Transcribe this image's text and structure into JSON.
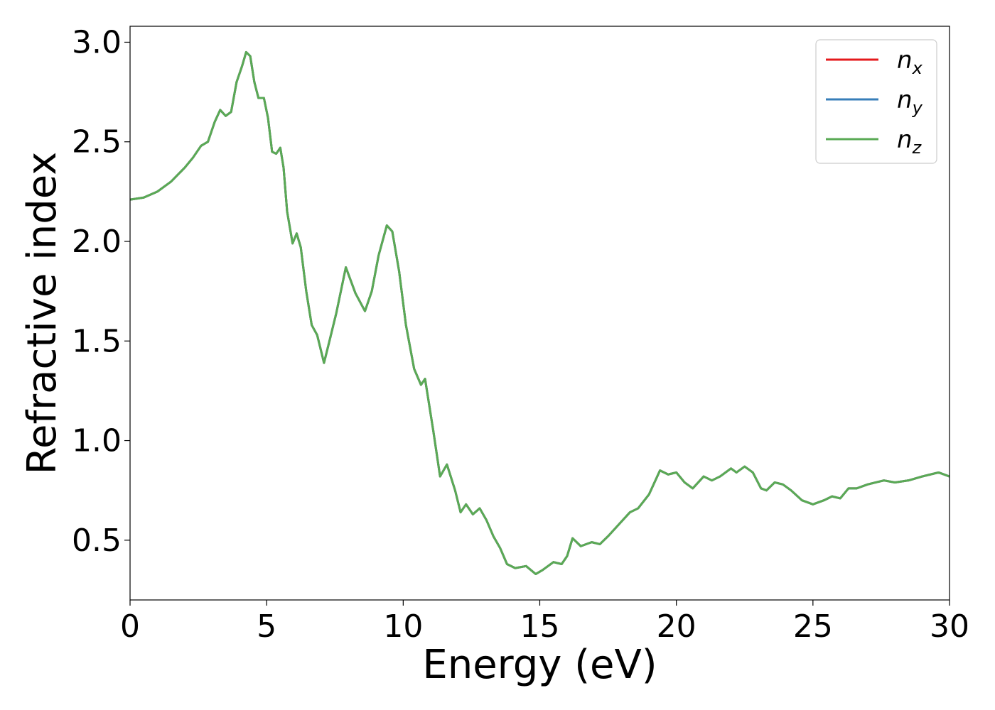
{
  "chart_data": {
    "type": "line",
    "xlabel": "Energy (eV)",
    "ylabel": "Refractive index",
    "xlim": [
      0,
      30
    ],
    "ylim": [
      0.2,
      3.08
    ],
    "xticks": [
      0,
      5,
      10,
      15,
      20,
      25,
      30
    ],
    "yticks": [
      0.5,
      1.0,
      1.5,
      2.0,
      2.5,
      3.0
    ],
    "xtick_labels": [
      "0",
      "5",
      "10",
      "15",
      "20",
      "25",
      "30"
    ],
    "ytick_labels": [
      "0.5",
      "1.0",
      "1.5",
      "2.0",
      "2.5",
      "3.0"
    ],
    "grid": false,
    "legend_position": "top-right",
    "series": [
      {
        "name": "n_x",
        "label_base": "n",
        "label_sub": "x",
        "color": "#e41a1c",
        "x": [
          0,
          0.5,
          1,
          1.5,
          2,
          2.3,
          2.6,
          2.85,
          3.1,
          3.3,
          3.5,
          3.7,
          3.9,
          4.1,
          4.25,
          4.4,
          4.55,
          4.7,
          4.9,
          5.05,
          5.2,
          5.35,
          5.5,
          5.62,
          5.75,
          5.95,
          6.1,
          6.25,
          6.45,
          6.65,
          6.85,
          7.1,
          7.3,
          7.55,
          7.9,
          8.25,
          8.6,
          8.85,
          9.1,
          9.4,
          9.6,
          9.85,
          10.1,
          10.4,
          10.65,
          10.8,
          11.1,
          11.35,
          11.6,
          11.9,
          12.1,
          12.3,
          12.55,
          12.8,
          13.05,
          13.3,
          13.55,
          13.8,
          14.1,
          14.5,
          14.85,
          15.1,
          15.5,
          15.8,
          16.0,
          16.2,
          16.5,
          16.9,
          17.2,
          17.5,
          17.9,
          18.3,
          18.6,
          19.0,
          19.4,
          19.7,
          20.0,
          20.3,
          20.6,
          21.0,
          21.3,
          21.6,
          22.0,
          22.2,
          22.5,
          22.8,
          23.1,
          23.3,
          23.6,
          23.9,
          24.2,
          24.6,
          25.0,
          25.4,
          25.7,
          26.0,
          26.3,
          26.6,
          27.0,
          27.3,
          27.6,
          28.0,
          28.5,
          29.0,
          29.3,
          29.6,
          30.0
        ],
        "y": [
          2.21,
          2.22,
          2.25,
          2.3,
          2.37,
          2.42,
          2.48,
          2.5,
          2.6,
          2.66,
          2.63,
          2.65,
          2.8,
          2.88,
          2.95,
          2.93,
          2.8,
          2.72,
          2.72,
          2.62,
          2.45,
          2.44,
          2.47,
          2.37,
          2.15,
          1.99,
          2.04,
          1.97,
          1.75,
          1.58,
          1.53,
          1.39,
          1.5,
          1.64,
          1.87,
          1.74,
          1.65,
          1.75,
          1.93,
          2.08,
          2.05,
          1.85,
          1.58,
          1.36,
          1.28,
          1.31,
          1.05,
          0.82,
          0.88,
          0.75,
          0.64,
          0.68,
          0.63,
          0.66,
          0.6,
          0.52,
          0.46,
          0.38,
          0.36,
          0.37,
          0.33,
          0.35,
          0.39,
          0.38,
          0.42,
          0.51,
          0.47,
          0.49,
          0.48,
          0.52,
          0.58,
          0.64,
          0.66,
          0.73,
          0.85,
          0.83,
          0.84,
          0.79,
          0.76,
          0.82,
          0.8,
          0.82,
          0.86,
          0.84,
          0.87,
          0.84,
          0.76,
          0.75,
          0.79,
          0.78,
          0.75,
          0.7,
          0.68,
          0.7,
          0.72,
          0.71,
          0.76,
          0.76,
          0.78,
          0.79,
          0.8,
          0.79,
          0.8,
          0.82,
          0.83,
          0.84,
          0.82
        ]
      },
      {
        "name": "n_y",
        "label_base": "n",
        "label_sub": "y",
        "color": "#377eb8",
        "x": [
          0,
          0.5,
          1,
          1.5,
          2,
          2.3,
          2.6,
          2.85,
          3.1,
          3.3,
          3.5,
          3.7,
          3.9,
          4.1,
          4.25,
          4.4,
          4.55,
          4.7,
          4.9,
          5.05,
          5.2,
          5.35,
          5.5,
          5.62,
          5.75,
          5.95,
          6.1,
          6.25,
          6.45,
          6.65,
          6.85,
          7.1,
          7.3,
          7.55,
          7.9,
          8.25,
          8.6,
          8.85,
          9.1,
          9.4,
          9.6,
          9.85,
          10.1,
          10.4,
          10.65,
          10.8,
          11.1,
          11.35,
          11.6,
          11.9,
          12.1,
          12.3,
          12.55,
          12.8,
          13.05,
          13.3,
          13.55,
          13.8,
          14.1,
          14.5,
          14.85,
          15.1,
          15.5,
          15.8,
          16.0,
          16.2,
          16.5,
          16.9,
          17.2,
          17.5,
          17.9,
          18.3,
          18.6,
          19.0,
          19.4,
          19.7,
          20.0,
          20.3,
          20.6,
          21.0,
          21.3,
          21.6,
          22.0,
          22.2,
          22.5,
          22.8,
          23.1,
          23.3,
          23.6,
          23.9,
          24.2,
          24.6,
          25.0,
          25.4,
          25.7,
          26.0,
          26.3,
          26.6,
          27.0,
          27.3,
          27.6,
          28.0,
          28.5,
          29.0,
          29.3,
          29.6,
          30.0
        ],
        "y": [
          2.21,
          2.22,
          2.25,
          2.3,
          2.37,
          2.42,
          2.48,
          2.5,
          2.6,
          2.66,
          2.63,
          2.65,
          2.8,
          2.88,
          2.95,
          2.93,
          2.8,
          2.72,
          2.72,
          2.62,
          2.45,
          2.44,
          2.47,
          2.37,
          2.15,
          1.99,
          2.04,
          1.97,
          1.75,
          1.58,
          1.53,
          1.39,
          1.5,
          1.64,
          1.87,
          1.74,
          1.65,
          1.75,
          1.93,
          2.08,
          2.05,
          1.85,
          1.58,
          1.36,
          1.28,
          1.31,
          1.05,
          0.82,
          0.88,
          0.75,
          0.64,
          0.68,
          0.63,
          0.66,
          0.6,
          0.52,
          0.46,
          0.38,
          0.36,
          0.37,
          0.33,
          0.35,
          0.39,
          0.38,
          0.42,
          0.51,
          0.47,
          0.49,
          0.48,
          0.52,
          0.58,
          0.64,
          0.66,
          0.73,
          0.85,
          0.83,
          0.84,
          0.79,
          0.76,
          0.82,
          0.8,
          0.82,
          0.86,
          0.84,
          0.87,
          0.84,
          0.76,
          0.75,
          0.79,
          0.78,
          0.75,
          0.7,
          0.68,
          0.7,
          0.72,
          0.71,
          0.76,
          0.76,
          0.78,
          0.79,
          0.8,
          0.79,
          0.8,
          0.82,
          0.83,
          0.84,
          0.82
        ]
      },
      {
        "name": "n_z",
        "label_base": "n",
        "label_sub": "z",
        "color": "#5aaa55",
        "x": [
          0,
          0.5,
          1,
          1.5,
          2,
          2.3,
          2.6,
          2.85,
          3.1,
          3.3,
          3.5,
          3.7,
          3.9,
          4.1,
          4.25,
          4.4,
          4.55,
          4.7,
          4.9,
          5.05,
          5.2,
          5.35,
          5.5,
          5.62,
          5.75,
          5.95,
          6.1,
          6.25,
          6.45,
          6.65,
          6.85,
          7.1,
          7.3,
          7.55,
          7.9,
          8.25,
          8.6,
          8.85,
          9.1,
          9.4,
          9.6,
          9.85,
          10.1,
          10.4,
          10.65,
          10.8,
          11.1,
          11.35,
          11.6,
          11.9,
          12.1,
          12.3,
          12.55,
          12.8,
          13.05,
          13.3,
          13.55,
          13.8,
          14.1,
          14.5,
          14.85,
          15.1,
          15.5,
          15.8,
          16.0,
          16.2,
          16.5,
          16.9,
          17.2,
          17.5,
          17.9,
          18.3,
          18.6,
          19.0,
          19.4,
          19.7,
          20.0,
          20.3,
          20.6,
          21.0,
          21.3,
          21.6,
          22.0,
          22.2,
          22.5,
          22.8,
          23.1,
          23.3,
          23.6,
          23.9,
          24.2,
          24.6,
          25.0,
          25.4,
          25.7,
          26.0,
          26.3,
          26.6,
          27.0,
          27.3,
          27.6,
          28.0,
          28.5,
          29.0,
          29.3,
          29.6,
          30.0
        ],
        "y": [
          2.21,
          2.22,
          2.25,
          2.3,
          2.37,
          2.42,
          2.48,
          2.5,
          2.6,
          2.66,
          2.63,
          2.65,
          2.8,
          2.88,
          2.95,
          2.93,
          2.8,
          2.72,
          2.72,
          2.62,
          2.45,
          2.44,
          2.47,
          2.37,
          2.15,
          1.99,
          2.04,
          1.97,
          1.75,
          1.58,
          1.53,
          1.39,
          1.5,
          1.64,
          1.87,
          1.74,
          1.65,
          1.75,
          1.93,
          2.08,
          2.05,
          1.85,
          1.58,
          1.36,
          1.28,
          1.31,
          1.05,
          0.82,
          0.88,
          0.75,
          0.64,
          0.68,
          0.63,
          0.66,
          0.6,
          0.52,
          0.46,
          0.38,
          0.36,
          0.37,
          0.33,
          0.35,
          0.39,
          0.38,
          0.42,
          0.51,
          0.47,
          0.49,
          0.48,
          0.52,
          0.58,
          0.64,
          0.66,
          0.73,
          0.85,
          0.83,
          0.84,
          0.79,
          0.76,
          0.82,
          0.8,
          0.82,
          0.86,
          0.84,
          0.87,
          0.84,
          0.76,
          0.75,
          0.79,
          0.78,
          0.75,
          0.7,
          0.68,
          0.7,
          0.72,
          0.71,
          0.76,
          0.76,
          0.78,
          0.79,
          0.8,
          0.79,
          0.8,
          0.82,
          0.83,
          0.84,
          0.82
        ]
      }
    ]
  }
}
